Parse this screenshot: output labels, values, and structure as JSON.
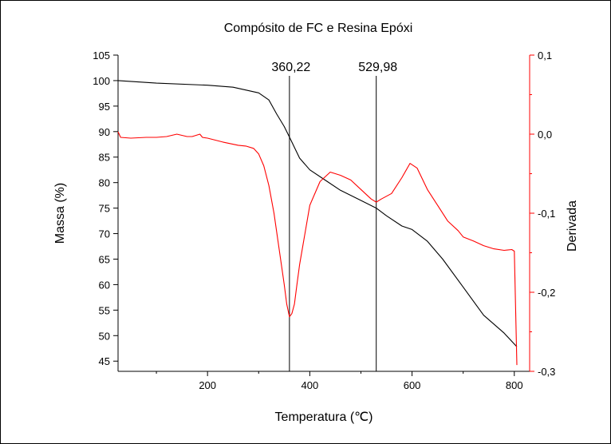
{
  "chart_data": {
    "type": "line",
    "title": "Compósito de FC e Resina Epóxi",
    "xlabel": "Temperatura (℃)",
    "ylabel_left": "Massa (%)",
    "ylabel_right": "Derivada",
    "xlim": [
      25,
      830
    ],
    "ylim_left": [
      43,
      105
    ],
    "ylim_right": [
      -0.3,
      0.1
    ],
    "x_ticks": [
      200,
      400,
      600,
      800
    ],
    "y_left_ticks": [
      45,
      50,
      55,
      60,
      65,
      70,
      75,
      80,
      85,
      90,
      95,
      100,
      105
    ],
    "y_left_tick_labels": [
      "45",
      "50",
      "55",
      "60",
      "65",
      "70",
      "75",
      "80",
      "85",
      "90",
      "95",
      "100",
      "105"
    ],
    "y_right_ticks": [
      -0.3,
      -0.2,
      -0.1,
      0.0,
      0.1
    ],
    "y_right_tick_labels": [
      "-0,3",
      "-0,2",
      "-0,1",
      "0,0",
      "0,1"
    ],
    "right_axis_color": "#ff0000",
    "grid": false,
    "annotations": [
      {
        "x": 360.22,
        "label": "360,22"
      },
      {
        "x": 529.98,
        "label": "529,98"
      }
    ],
    "series": [
      {
        "axis": "left",
        "color": "#000000",
        "x": [
          25,
          100,
          200,
          250,
          300,
          320,
          335,
          350,
          360,
          380,
          400,
          430,
          460,
          500,
          529.98,
          550,
          580,
          600,
          630,
          660,
          700,
          740,
          780,
          805
        ],
        "y": [
          100,
          99.5,
          99.1,
          98.7,
          97.6,
          96.2,
          93.5,
          91,
          89,
          84.8,
          82.5,
          80.5,
          78.5,
          76.5,
          75,
          73.5,
          71.5,
          70.8,
          68.5,
          65,
          59.5,
          54,
          50.5,
          47.8
        ]
      },
      {
        "axis": "right",
        "color": "#ff0000",
        "x": [
          25,
          30,
          50,
          80,
          100,
          120,
          140,
          160,
          170,
          185,
          190,
          200,
          230,
          260,
          275,
          290,
          300,
          310,
          320,
          330,
          340,
          350,
          355,
          360.22,
          365,
          370,
          375,
          380,
          400,
          420,
          440,
          460,
          480,
          500,
          520,
          529.98,
          540,
          560,
          580,
          596,
          610,
          630,
          650,
          670,
          690,
          700,
          720,
          740,
          760,
          780,
          795,
          800,
          805
        ],
        "y": [
          0.003,
          -0.004,
          -0.005,
          -0.004,
          -0.004,
          -0.003,
          0.0,
          -0.003,
          -0.003,
          0.0,
          -0.004,
          -0.005,
          -0.01,
          -0.014,
          -0.015,
          -0.018,
          -0.025,
          -0.04,
          -0.065,
          -0.1,
          -0.145,
          -0.19,
          -0.215,
          -0.231,
          -0.227,
          -0.215,
          -0.19,
          -0.165,
          -0.09,
          -0.06,
          -0.048,
          -0.052,
          -0.058,
          -0.07,
          -0.082,
          -0.086,
          -0.082,
          -0.075,
          -0.055,
          -0.037,
          -0.043,
          -0.07,
          -0.09,
          -0.11,
          -0.122,
          -0.13,
          -0.135,
          -0.141,
          -0.145,
          -0.147,
          -0.146,
          -0.148,
          -0.292
        ]
      }
    ]
  }
}
